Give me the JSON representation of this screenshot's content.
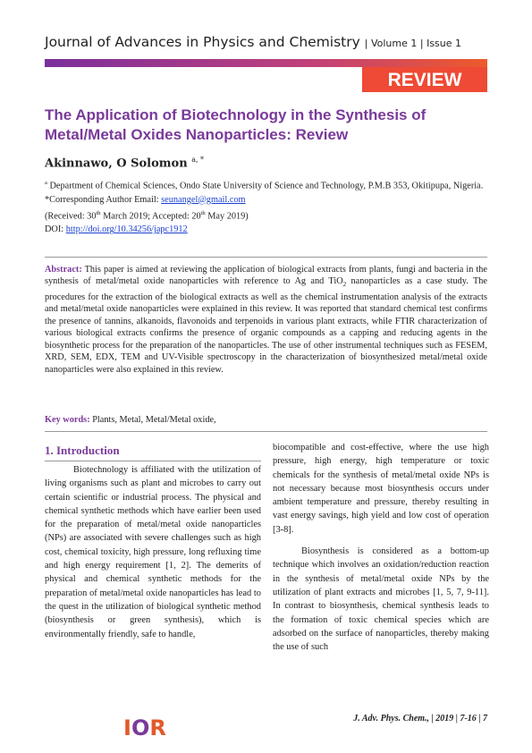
{
  "header": {
    "journal": "Journal of Advances in Physics and Chemistry",
    "volume": "Volume 1",
    "issue": "Issue 1",
    "banner": "REVIEW"
  },
  "article": {
    "title": "The Application of Biotechnology in the Synthesis of Metal/Metal Oxides Nanoparticles: Review",
    "author": "Akinnawo, O Solomon",
    "author_marks": "a, *",
    "affiliation_mark": "a",
    "affiliation": "Department of Chemical Sciences, Ondo State University of Science and Technology, P.M.B 353, Okitipupa, Nigeria.",
    "email_label": "*Corresponding Author Email:",
    "email": "seunangel@gmail.com",
    "received": [
      "(Received: 30",
      "th",
      " March 2019; Accepted: 20",
      "th",
      " May 2019)"
    ],
    "doi_label": "DOI:",
    "doi": "http://doi.org/10.34256/japc1912",
    "abstract_label": "Abstract:",
    "abstract": [
      "This paper is aimed at reviewing the application of biological extracts from plants, fungi and bacteria in the synthesis of metal/metal oxide nanoparticles with reference to Ag and TiO",
      "2",
      " nanoparticles as a case study. The procedures for the extraction of the biological extracts as well as the chemical instrumentation analysis of the extracts and metal/metal oxide nanoparticles were explained in this review. It was reported that standard chemical test confirms the presence of tannins, alkanoids, flavonoids and terpenoids in various plant extracts, while FTIR characterization of various biological extracts confirms the presence of organic compounds as a capping and reducing agents in the biosynthetic process for the preparation of the nanoparticles. The use of other instrumental techniques such as FESEM, XRD, SEM, EDX, TEM and UV-Visible spectroscopy in the characterization of biosynthesized metal/metal oxide nanoparticles were also explained in this review."
    ],
    "keywords_label": "Key words:",
    "keywords": "Plants, Metal, Metal/Metal oxide,",
    "section_heading": "1. Introduction",
    "paragraphs": [
      "Biotechnology is affiliated with the utilization of living organisms such as plant and microbes to carry out certain scientific or industrial process. The physical and chemical synthetic methods which have earlier been used for the preparation of metal/metal oxide nanoparticles (NPs) are associated with severe challenges such as high cost, chemical toxicity, high pressure, long refluxing time and high energy requirement [1, 2]. The demerits of physical and chemical synthetic methods for the preparation of metal/metal oxide nanoparticles has lead to the quest in the utilization of biological synthetic method (biosynthesis or green synthesis), which is environmentally friendly, safe to handle,",
      "biocompatible and cost-effective, where the use high pressure, high energy, high temperature or toxic chemicals for the synthesis of metal/metal oxide NPs is not necessary because most biosynthesis occurs under ambient temperature and pressure, thereby resulting in vast energy savings, high yield and low cost of operation [3-8].",
      "Biosynthesis is considered as a bottom-up technique which involves an oxidation/reduction reaction in the synthesis of metal/metal oxide NPs by the utilization of plant extracts and microbes [1, 5, 7, 9-11]. In contrast to biosynthesis, chemical synthesis leads to the formation of toxic chemical species which are adsorbed on the surface of nanoparticles, thereby making the use of such"
    ]
  },
  "footer": {
    "citation": "J. Adv. Phys. Chem., | 2019 | 7-16 | 7",
    "logo": [
      "I",
      "O",
      "R"
    ]
  }
}
